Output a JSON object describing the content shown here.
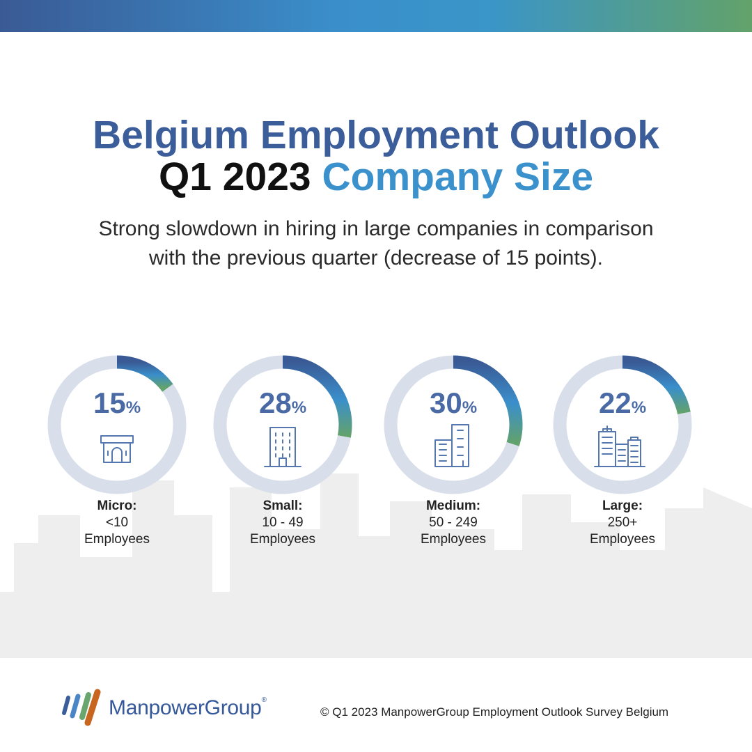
{
  "header": {
    "title_line1": "Belgium Employment Outlook",
    "title_quarter": "Q1 2023",
    "title_topic": "Company Size",
    "subtitle_line1": "Strong slowdown in hiring in large companies in comparison",
    "subtitle_line2": "with the previous quarter (decrease of 15 points)."
  },
  "colors": {
    "ring_track": "#d8dfea",
    "value_text": "#4a6aa5",
    "icon_stroke": "#5577b0",
    "gradient_start": "#3a5a95",
    "gradient_mid": "#3a8fcb",
    "gradient_end": "#63a26a"
  },
  "chart_data": {
    "type": "donut",
    "unit": "%",
    "categories": [
      {
        "name": "Micro:",
        "range": "<10",
        "unit_label": "Employees",
        "value": 15,
        "icon": "small-shop-icon"
      },
      {
        "name": "Small:",
        "range": "10 - 49",
        "unit_label": "Employees",
        "value": 28,
        "icon": "office-building-icon"
      },
      {
        "name": "Medium:",
        "range": "50 - 249",
        "unit_label": "Employees",
        "value": 30,
        "icon": "two-buildings-icon"
      },
      {
        "name": "Large:",
        "range": "250+",
        "unit_label": "Employees",
        "value": 22,
        "icon": "city-buildings-icon"
      }
    ]
  },
  "footer": {
    "brand": "ManpowerGroup",
    "brand_mark": "®",
    "copyright": "© Q1 2023 ManpowerGroup Employment Outlook Survey Belgium"
  }
}
